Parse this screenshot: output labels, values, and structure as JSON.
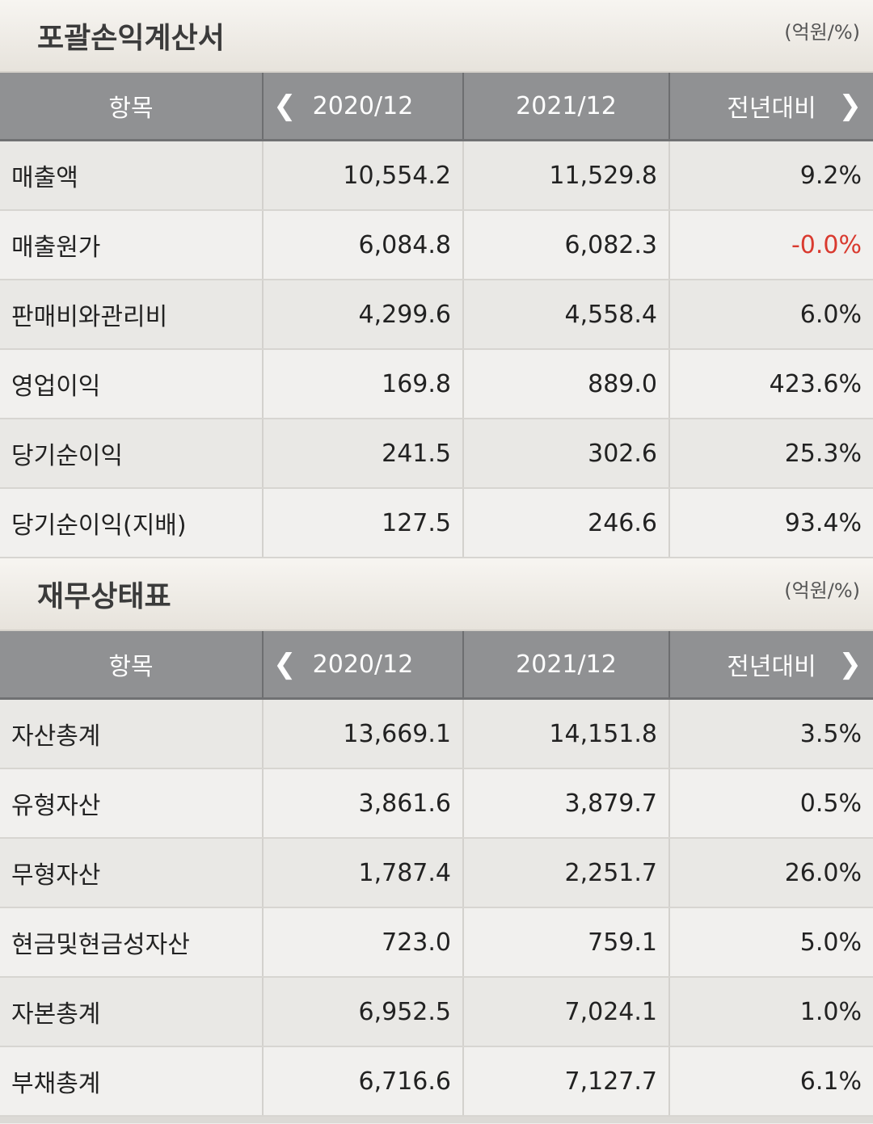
{
  "sections": [
    {
      "title": "포괄손익계산서",
      "unit": "(억원/%)",
      "headers": {
        "item": "항목",
        "col1": "2020/12",
        "col2": "2021/12",
        "col3": "전년대비"
      },
      "rows": [
        {
          "item": "매출액",
          "v2020": "10,554.2",
          "v2021": "11,529.8",
          "yoy": "9.2%"
        },
        {
          "item": "매출원가",
          "v2020": "6,084.8",
          "v2021": "6,082.3",
          "yoy": "-0.0%"
        },
        {
          "item": "판매비와관리비",
          "v2020": "4,299.6",
          "v2021": "4,558.4",
          "yoy": "6.0%"
        },
        {
          "item": "영업이익",
          "v2020": "169.8",
          "v2021": "889.0",
          "yoy": "423.6%"
        },
        {
          "item": "당기순이익",
          "v2020": "241.5",
          "v2021": "302.6",
          "yoy": "25.3%"
        },
        {
          "item": "당기순이익(지배)",
          "v2020": "127.5",
          "v2021": "246.6",
          "yoy": "93.4%"
        }
      ]
    },
    {
      "title": "재무상태표",
      "unit": "(억원/%)",
      "headers": {
        "item": "항목",
        "col1": "2020/12",
        "col2": "2021/12",
        "col3": "전년대비"
      },
      "rows": [
        {
          "item": "자산총계",
          "v2020": "13,669.1",
          "v2021": "14,151.8",
          "yoy": "3.5%"
        },
        {
          "item": "유형자산",
          "v2020": "3,861.6",
          "v2021": "3,879.7",
          "yoy": "0.5%"
        },
        {
          "item": "무형자산",
          "v2020": "1,787.4",
          "v2021": "2,251.7",
          "yoy": "26.0%"
        },
        {
          "item": "현금및현금성자산",
          "v2020": "723.0",
          "v2021": "759.1",
          "yoy": "5.0%"
        },
        {
          "item": "자본총계",
          "v2020": "6,952.5",
          "v2021": "7,024.1",
          "yoy": "1.0%"
        },
        {
          "item": "부채총계",
          "v2020": "6,716.6",
          "v2021": "7,127.7",
          "yoy": "6.1%"
        }
      ]
    }
  ],
  "icons": {
    "prev": "chevron-left-icon",
    "next": "chevron-right-icon"
  },
  "colors": {
    "header_bg": "#909193",
    "negative": "#d93a2f"
  }
}
